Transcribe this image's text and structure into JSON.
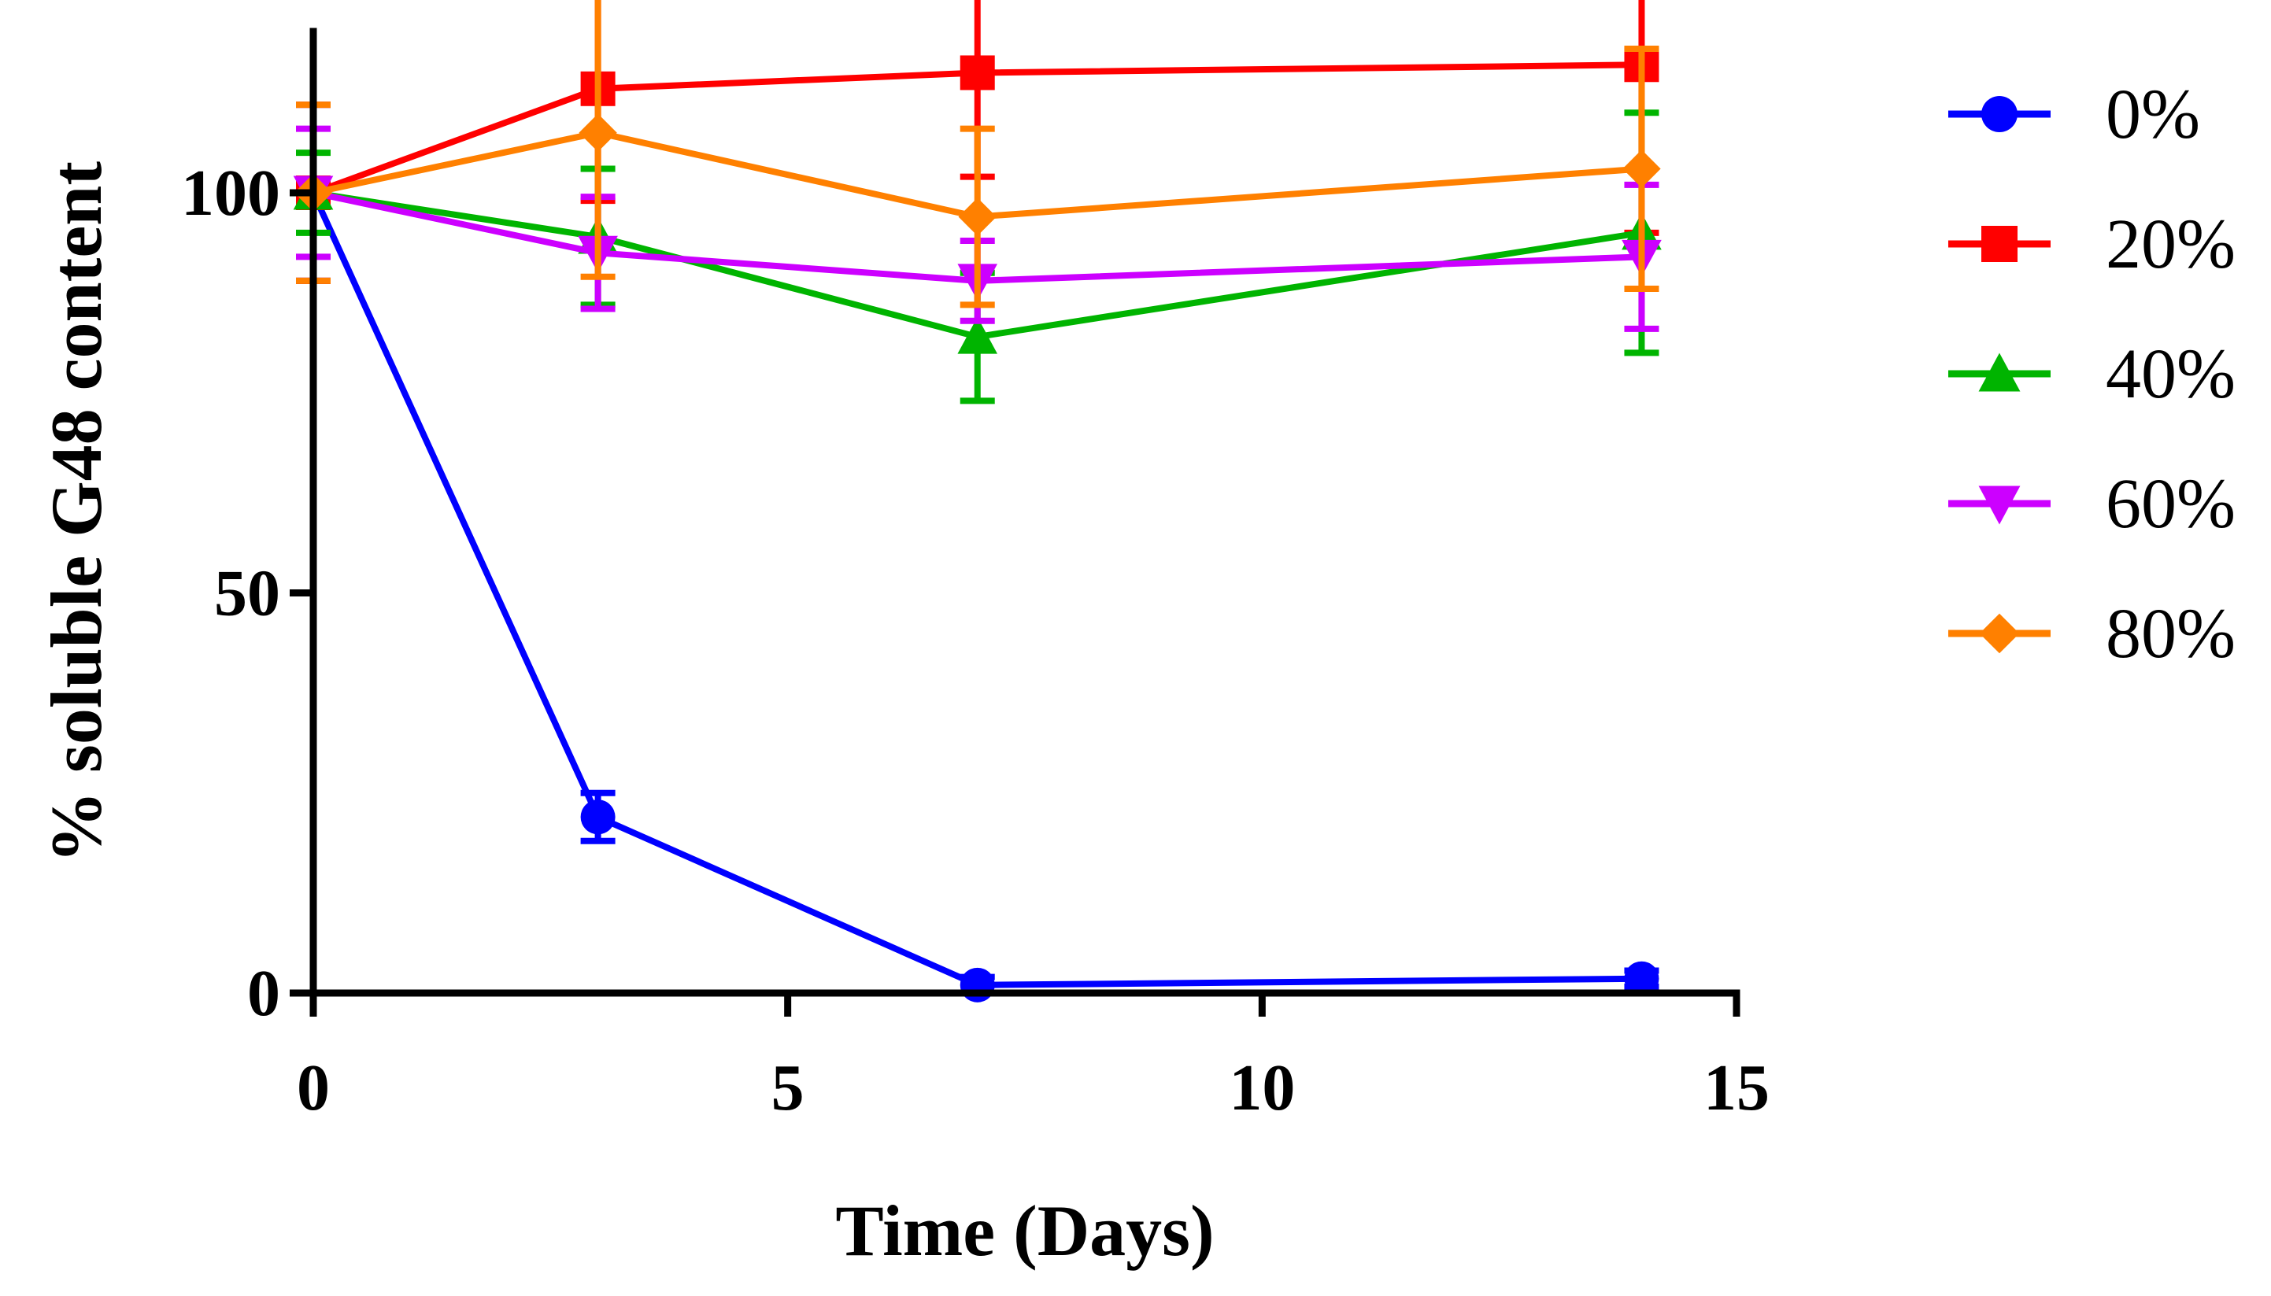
{
  "chart_data": {
    "type": "line",
    "title": "",
    "xlabel": "Time (Days)",
    "ylabel": "% soluble G48 content",
    "xlim": [
      0,
      15
    ],
    "ylim": [
      0,
      120
    ],
    "x_ticks": [
      0,
      5,
      10,
      15
    ],
    "y_ticks": [
      0,
      50,
      100
    ],
    "x_tick_labels": [
      "0",
      "5",
      "10",
      "15"
    ],
    "y_tick_labels": [
      "0",
      "50",
      "100"
    ],
    "grid": false,
    "legend_position": "right",
    "x": [
      0,
      3,
      7,
      14
    ],
    "series": [
      {
        "name": "0%",
        "color": "#0000ff",
        "marker": "circle",
        "values": [
          100,
          22,
          1,
          1.8
        ],
        "errors": [
          11,
          3,
          1,
          1
        ]
      },
      {
        "name": "20%",
        "color": "#ff0000",
        "marker": "square",
        "values": [
          100,
          113,
          115,
          116
        ],
        "errors": [
          11,
          14,
          13,
          21
        ]
      },
      {
        "name": "40%",
        "color": "#00b400",
        "marker": "triangle-up",
        "values": [
          100,
          94.5,
          82,
          95
        ],
        "errors": [
          5,
          8.5,
          8,
          15
        ]
      },
      {
        "name": "60%",
        "color": "#cc00ff",
        "marker": "triangle-down",
        "values": [
          100,
          92.5,
          89,
          92
        ],
        "errors": [
          8,
          7,
          5,
          9
        ]
      },
      {
        "name": "80%",
        "color": "#ff8000",
        "marker": "diamond",
        "values": [
          100,
          107.5,
          97,
          103
        ],
        "errors": [
          11,
          18,
          11,
          15
        ]
      }
    ]
  }
}
